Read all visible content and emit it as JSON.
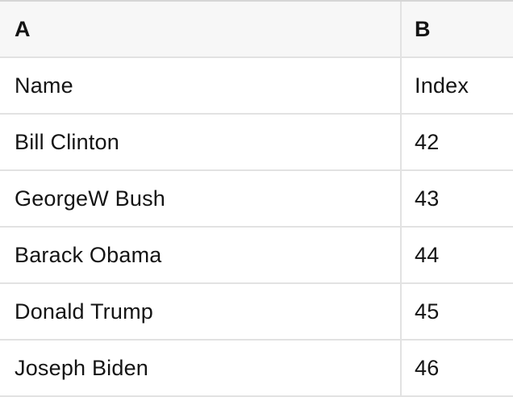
{
  "table": {
    "columns": [
      {
        "id": "A",
        "header": "A"
      },
      {
        "id": "B",
        "header": "B"
      }
    ],
    "rows": [
      {
        "A": "Name",
        "B": "Index"
      },
      {
        "A": "Bill Clinton",
        "B": "42"
      },
      {
        "A": "GeorgeW Bush",
        "B": "43"
      },
      {
        "A": "Barack Obama",
        "B": "44"
      },
      {
        "A": "Donald Trump",
        "B": "45"
      },
      {
        "A": "Joseph Biden",
        "B": "46"
      }
    ]
  },
  "colors": {
    "header_bg": "#f7f7f7",
    "row_bg": "#ffffff",
    "grid_line": "#e2e2e2",
    "top_border": "#d6d6d6",
    "text": "#141414"
  }
}
